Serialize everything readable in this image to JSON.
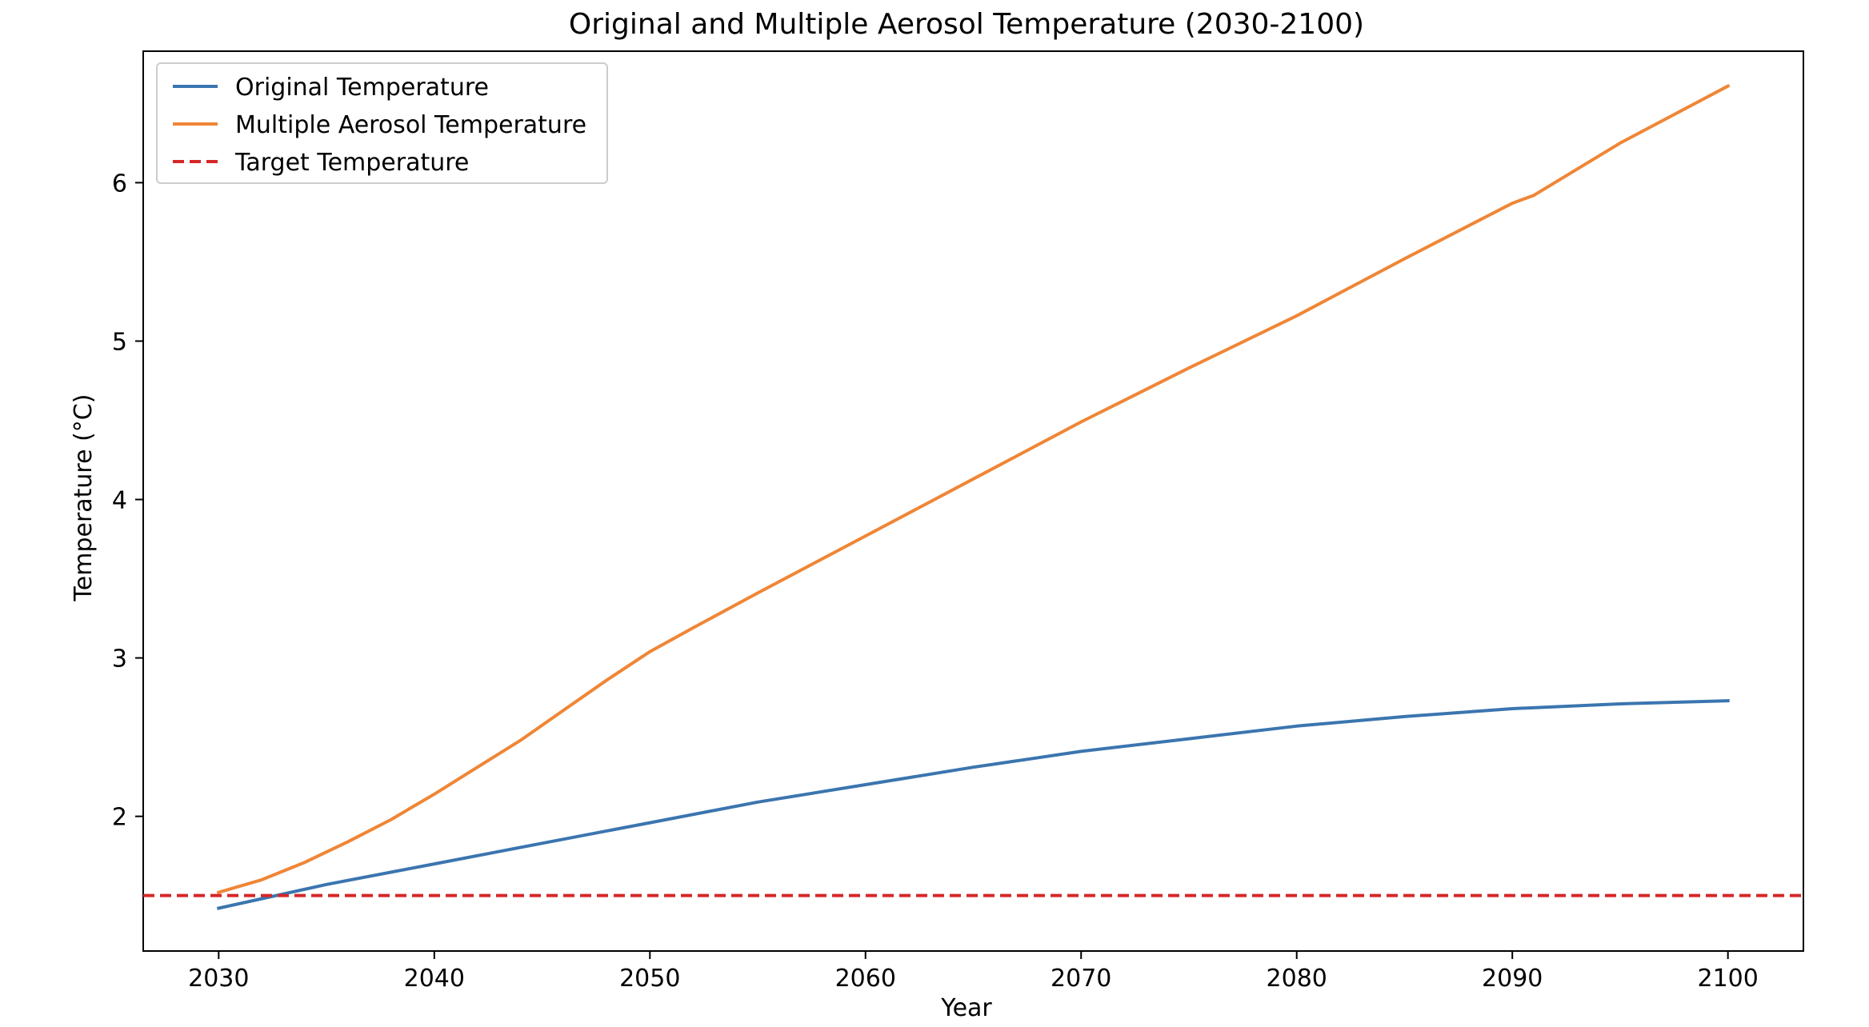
{
  "chart_data": {
    "type": "line",
    "title": "Original and Multiple Aerosol Temperature (2030-2100)",
    "xlabel": "Year",
    "ylabel": "Temperature (°C)",
    "xlim": [
      2026.5,
      2103.5
    ],
    "ylim": [
      1.15,
      6.83
    ],
    "x_ticks": [
      2030,
      2040,
      2050,
      2060,
      2070,
      2080,
      2090,
      2100
    ],
    "y_ticks": [
      2,
      3,
      4,
      5,
      6
    ],
    "grid": false,
    "legend_position": "upper-left",
    "series": [
      {
        "name": "Original Temperature",
        "color": "#3b75af",
        "style": "solid",
        "x": [
          2030,
          2035,
          2040,
          2045,
          2050,
          2055,
          2060,
          2065,
          2070,
          2075,
          2080,
          2085,
          2090,
          2095,
          2100
        ],
        "y": [
          1.42,
          1.57,
          1.7,
          1.83,
          1.96,
          2.09,
          2.2,
          2.31,
          2.41,
          2.49,
          2.57,
          2.63,
          2.68,
          2.71,
          2.73
        ]
      },
      {
        "name": "Multiple Aerosol Temperature",
        "color": "#ef8636",
        "style": "solid",
        "x": [
          2030,
          2032,
          2034,
          2036,
          2038,
          2040,
          2042,
          2044,
          2046,
          2048,
          2050,
          2052,
          2055,
          2060,
          2065,
          2070,
          2075,
          2080,
          2085,
          2090,
          2091,
          2095,
          2100
        ],
        "y": [
          1.52,
          1.6,
          1.71,
          1.84,
          1.98,
          2.14,
          2.31,
          2.48,
          2.67,
          2.86,
          3.04,
          3.19,
          3.41,
          3.77,
          4.13,
          4.49,
          4.83,
          5.16,
          5.52,
          5.87,
          5.92,
          6.25,
          6.61
        ]
      },
      {
        "name": "Target Temperature",
        "color": "#d62728",
        "style": "dashed",
        "y_constant": 1.5
      }
    ]
  }
}
